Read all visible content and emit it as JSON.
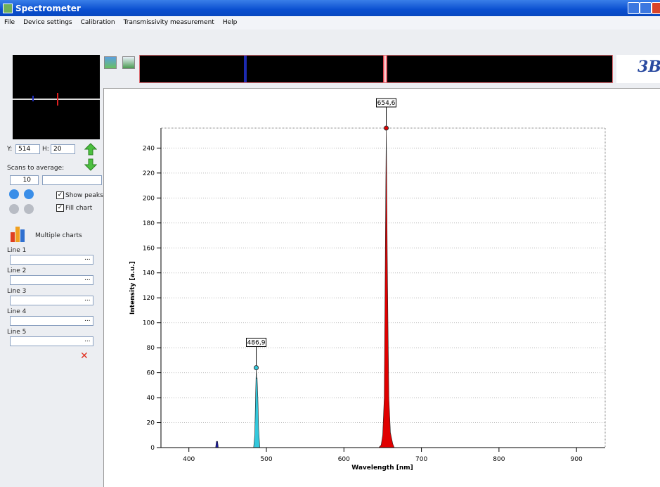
{
  "window": {
    "title": "Spectrometer"
  },
  "menu": [
    "File",
    "Device settings",
    "Calibration",
    "Transmissivity measurement",
    "Help"
  ],
  "controls": {
    "y_label": "Y:",
    "y_value": 514,
    "h_label": "H:",
    "h_value": 20,
    "scans_label": "Scans to average:",
    "scans_value": 10,
    "show_peaks": "Show peaks",
    "fill_chart": "Fill chart",
    "multiple_charts": "Multiple charts",
    "lines": [
      "Line 1",
      "Line 2",
      "Line 3",
      "Line 4",
      "Line 5"
    ],
    "browse": "..."
  },
  "logo": "3B",
  "chart_data": {
    "type": "area",
    "x_label": "Wavelength [nm]",
    "y_label": "Intensity [a.u.]",
    "xlim": [
      364,
      937
    ],
    "ylim": [
      0,
      256
    ],
    "xticks": [
      400,
      500,
      600,
      700,
      800,
      900
    ],
    "yticks": [
      0,
      20,
      40,
      60,
      80,
      100,
      120,
      140,
      160,
      180,
      200,
      220,
      240
    ],
    "grid": true,
    "series": [
      {
        "color": "#1a1aa0",
        "x": [
          434.5,
          435.5,
          437,
          438
        ],
        "values": [
          0,
          5,
          5,
          0
        ]
      },
      {
        "color": "#33c8dc",
        "x": [
          483.5,
          485,
          486,
          486.9,
          487.5,
          488,
          489,
          490,
          491.5
        ],
        "values": [
          0,
          10,
          40,
          64,
          55,
          56,
          40,
          15,
          0
        ]
      },
      {
        "color": "#e00000",
        "x": [
          645,
          648,
          650,
          652,
          653,
          654,
          654.6,
          655,
          656,
          657,
          658,
          660,
          663,
          665
        ],
        "values": [
          0,
          2,
          10,
          40,
          120,
          210,
          256,
          230,
          150,
          90,
          40,
          12,
          3,
          0
        ]
      }
    ],
    "annotations": [
      {
        "x": 486.9,
        "y": 64,
        "label": "486,9",
        "color": "#33c8dc"
      },
      {
        "x": 654.6,
        "y": 256,
        "label": "654,6",
        "color": "#e00000"
      }
    ]
  }
}
